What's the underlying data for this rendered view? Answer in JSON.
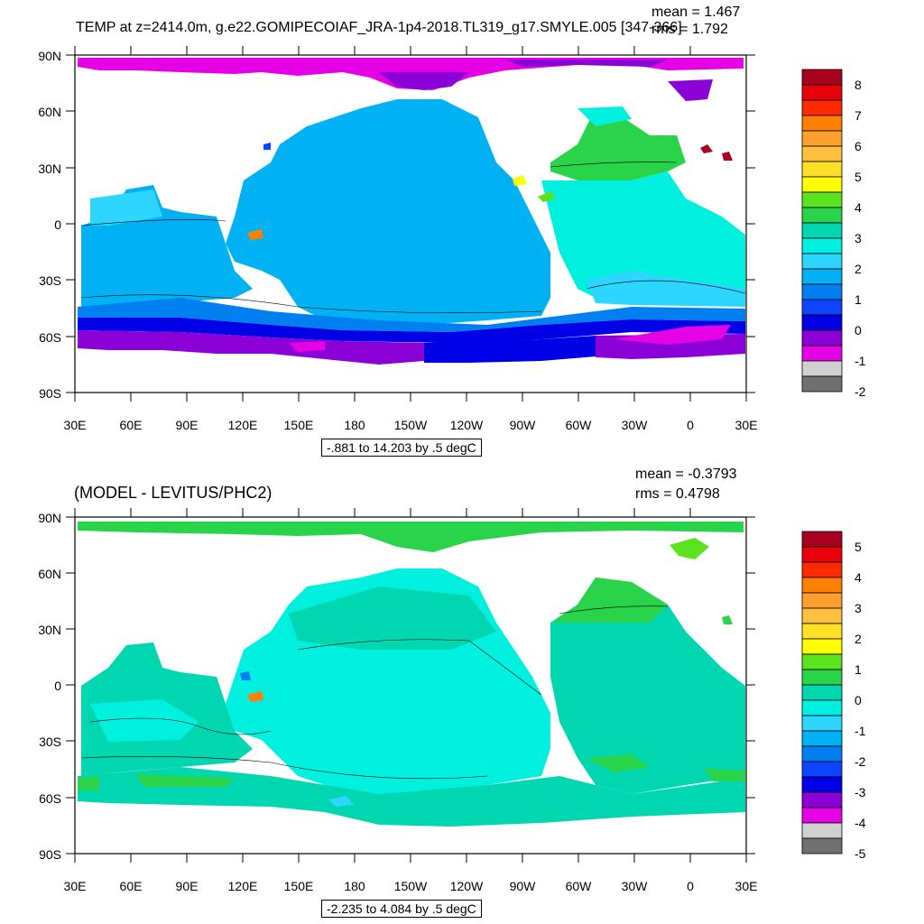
{
  "panels": [
    {
      "title": "TEMP at z=2414.0m, g.e22.GOMIPECOIAF_JRA-1p4-2018.TL319_g17.SMYLE.005 [347-366]",
      "stats": {
        "mean": "mean = 1.467",
        "rms": "rms = 1.792"
      },
      "info_box": "-.881 to 14.203 by .5 degC",
      "colorbar": {
        "labels": [
          "8",
          "7",
          "6",
          "5",
          "4",
          "3",
          "2",
          "1",
          "0",
          "-1",
          "-2"
        ],
        "colors": [
          "#a8001e",
          "#e8000b",
          "#ff2a00",
          "#ff7f00",
          "#ff9f2f",
          "#ffbf3f",
          "#ffe028",
          "#ffff00",
          "#5ae31e",
          "#2ad44a",
          "#00d6b0",
          "#00f0e0",
          "#2cd6ff",
          "#00b2f4",
          "#0080f0",
          "#0c44ff",
          "#0000e6",
          "#8a00d6",
          "#e600e6",
          "#d0d0d0",
          "#707070"
        ]
      },
      "x_ticks": [
        "30E",
        "60E",
        "90E",
        "120E",
        "150E",
        "180",
        "150W",
        "120W",
        "90W",
        "60W",
        "30W",
        "0",
        "30E"
      ],
      "y_ticks": [
        "90N",
        "60N",
        "30N",
        "0",
        "30S",
        "60S",
        "90S"
      ]
    },
    {
      "title": "(MODEL - LEVITUS/PHC2)",
      "stats": {
        "mean": "mean = -0.3793",
        "rms": "rms = 0.4798"
      },
      "info_box": "-2.235 to 4.084 by .5 degC",
      "colorbar": {
        "labels": [
          "5",
          "4",
          "3",
          "2",
          "1",
          "0",
          "-1",
          "-2",
          "-3",
          "-4",
          "-5"
        ],
        "colors": [
          "#a8001e",
          "#e8000b",
          "#ff2a00",
          "#ff7f00",
          "#ff9f2f",
          "#ffbf3f",
          "#ffe028",
          "#ffff00",
          "#5ae31e",
          "#2ad44a",
          "#00d6b0",
          "#00f0e0",
          "#2cd6ff",
          "#00b2f4",
          "#0080f0",
          "#0c44ff",
          "#0000e6",
          "#8a00d6",
          "#e600e6",
          "#d0d0d0",
          "#707070"
        ]
      },
      "x_ticks": [
        "30E",
        "60E",
        "90E",
        "120E",
        "150E",
        "180",
        "150W",
        "120W",
        "90W",
        "60W",
        "30W",
        "0",
        "30E"
      ],
      "y_ticks": [
        "90N",
        "60N",
        "30N",
        "0",
        "30S",
        "60S",
        "90S"
      ]
    }
  ]
}
